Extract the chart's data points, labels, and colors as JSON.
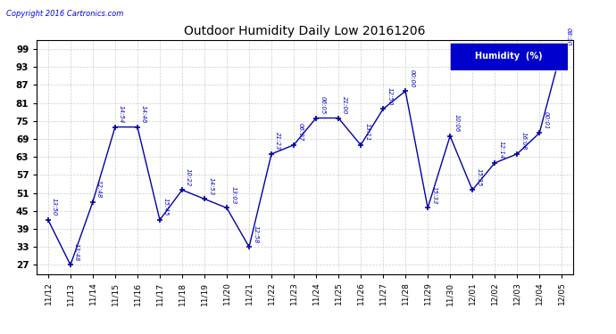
{
  "title": "Outdoor Humidity Daily Low 20161206",
  "copyright": "Copyright 2016 Cartronics.com",
  "legend_label": "Humidity  (%)",
  "x_labels": [
    "11/12",
    "11/13",
    "11/14",
    "11/15",
    "11/16",
    "11/17",
    "11/18",
    "11/19",
    "11/20",
    "11/21",
    "11/22",
    "11/23",
    "11/24",
    "11/25",
    "11/26",
    "11/27",
    "11/28",
    "11/29",
    "11/30",
    "12/01",
    "12/02",
    "12/03",
    "12/04",
    "12/05"
  ],
  "y_values": [
    42,
    27,
    48,
    73,
    73,
    42,
    52,
    49,
    46,
    33,
    64,
    67,
    76,
    76,
    67,
    79,
    85,
    46,
    70,
    52,
    61,
    64,
    71,
    99
  ],
  "time_labels": [
    "13:50",
    "13:48",
    "12:48",
    "14:54",
    "14:46",
    "15:45",
    "10:22",
    "14:53",
    "13:03",
    "12:58",
    "21:23",
    "06:07",
    "06:05",
    "21:00",
    "13:11",
    "12:50",
    "00:00",
    "15:33",
    "10:06",
    "15:35",
    "12:14",
    "16:08",
    "00:01",
    "08:30"
  ],
  "line_color": "#0000AA",
  "marker_color": "#0000AA",
  "background_color": "#ffffff",
  "plot_bg_color": "#ffffff",
  "grid_color": "#cccccc",
  "title_color": "#000000",
  "legend_bg": "#0000CC",
  "legend_text_color": "#ffffff",
  "annotation_color": "#0000CC",
  "ylim": [
    24,
    102
  ],
  "yticks": [
    27,
    33,
    39,
    45,
    51,
    57,
    63,
    69,
    75,
    81,
    87,
    93,
    99
  ]
}
